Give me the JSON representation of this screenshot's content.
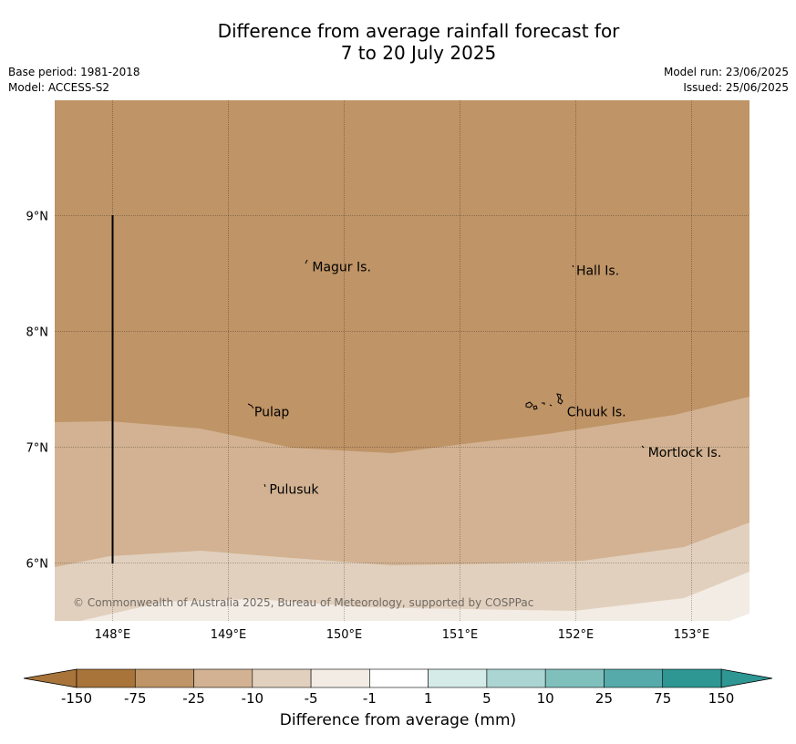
{
  "title": {
    "line1": "Difference from average rainfall forecast for",
    "line2": "7 to 20 July 2025"
  },
  "meta": {
    "base_period": "Base period: 1981-2018",
    "model": "Model: ACCESS-S2",
    "model_run": "Model run: 23/06/2025",
    "issued": "Issued: 25/06/2025"
  },
  "map": {
    "lon_range": [
      147.5,
      153.5
    ],
    "lat_range": [
      5.5,
      10.0
    ],
    "lon_ticks": [
      {
        "value": 148,
        "label": "148°E"
      },
      {
        "value": 149,
        "label": "149°E"
      },
      {
        "value": 150,
        "label": "150°E"
      },
      {
        "value": 151,
        "label": "151°E"
      },
      {
        "value": 152,
        "label": "152°E"
      },
      {
        "value": 153,
        "label": "153°E"
      }
    ],
    "lat_ticks": [
      {
        "value": 9,
        "label": "9°N"
      },
      {
        "value": 8,
        "label": "8°N"
      },
      {
        "value": 7,
        "label": "7°N"
      },
      {
        "value": 6,
        "label": "6°N"
      }
    ],
    "grid": true,
    "places": [
      {
        "name": "Magur Is.",
        "lon": 149.7,
        "lat": 8.55
      },
      {
        "name": "Hall Is.",
        "lon": 151.98,
        "lat": 8.52
      },
      {
        "name": "Pulap",
        "lon": 149.2,
        "lat": 7.3
      },
      {
        "name": "Chuuk Is.",
        "lon": 151.9,
        "lat": 7.3
      },
      {
        "name": "Mortlock Is.",
        "lon": 152.6,
        "lat": 6.95
      },
      {
        "name": "Pulusuk",
        "lon": 149.33,
        "lat": 6.63
      }
    ],
    "copyright": "© Commonwealth of Australia 2025, Bureau of Meteorology, supported by COSPPac"
  },
  "colorbar": {
    "label": "Difference from average (mm)",
    "colors": [
      "#a8743a",
      "#bf9466",
      "#d2b292",
      "#e2d0be",
      "#f2ece4",
      "#ffffff",
      "#d4ebe8",
      "#aad5d3",
      "#7fc0bd",
      "#56aaa9",
      "#2e9693"
    ],
    "under_color": "#a8743a",
    "over_color": "#2e9693",
    "ticks": [
      "-150",
      "-75",
      "-25",
      "-10",
      "-5",
      "-1",
      "1",
      "5",
      "10",
      "25",
      "75",
      "150"
    ]
  }
}
